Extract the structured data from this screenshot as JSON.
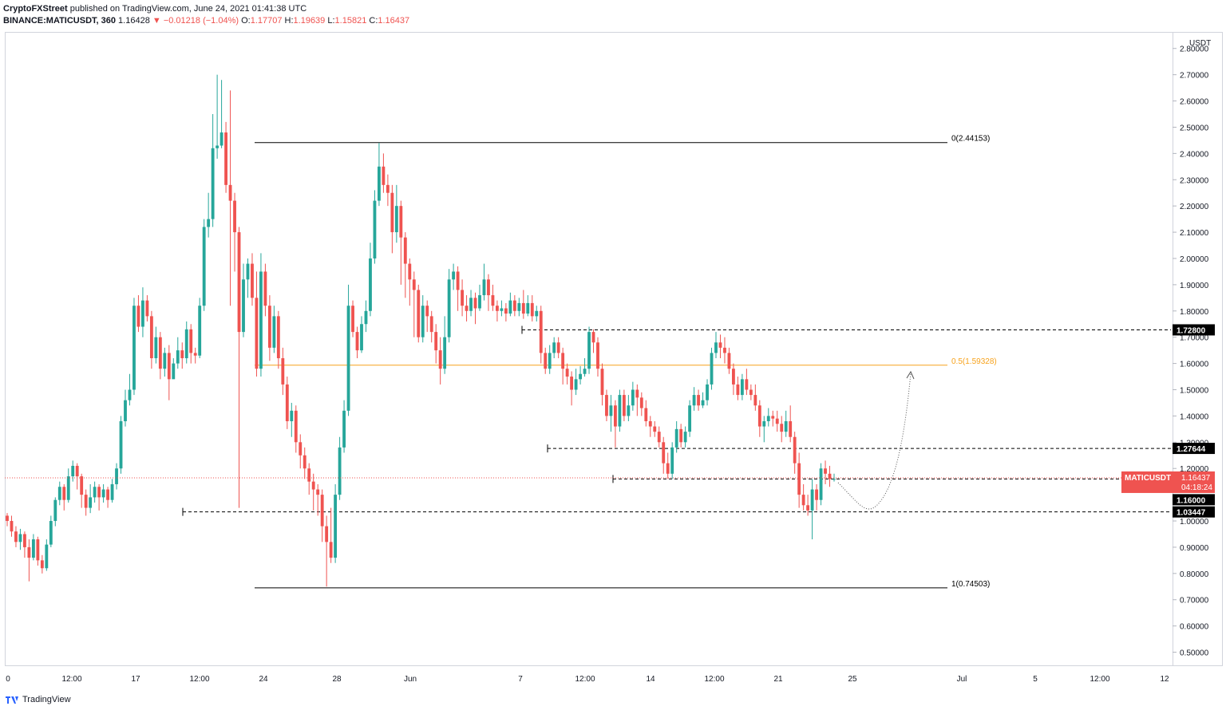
{
  "header": {
    "publisher": "CryptoFXStreet",
    "published_text": "published on TradingView.com, June 24, 2021 01:41:38 UTC",
    "symbol": "BINANCE:MATICUSDT, 360",
    "last": "1.16428",
    "change": "−0.01218 (−1.04%)",
    "o_label": "O:",
    "o": "1.17707",
    "h_label": "H:",
    "h": "1.19639",
    "l_label": "L:",
    "l": "1.15821",
    "c_label": "C:",
    "c": "1.16437"
  },
  "footer": {
    "brand": "TradingView"
  },
  "colors": {
    "up": "#26a69a",
    "down": "#ef5350",
    "fib_mid": "#f7a21b",
    "level": "#000000"
  },
  "chart_data": {
    "type": "candlestick",
    "currency_label": "USDT",
    "y_ticks": [
      "2.80000",
      "2.70000",
      "2.60000",
      "2.50000",
      "2.40000",
      "2.30000",
      "2.20000",
      "2.10000",
      "2.00000",
      "1.90000",
      "1.80000",
      "1.70000",
      "1.60000",
      "1.50000",
      "1.40000",
      "1.30000",
      "1.20000",
      "1.00000",
      "0.90000",
      "0.80000",
      "0.70000",
      "0.60000",
      "0.50000"
    ],
    "x_ticks": [
      "0",
      "12:00",
      "17",
      "12:00",
      "24",
      "28",
      "Jun",
      "7",
      "12:00",
      "14",
      "12:00",
      "21",
      "25",
      "Jul",
      "5",
      "12:00",
      "12"
    ],
    "ylim": [
      0.45,
      2.86
    ],
    "fib_levels": [
      {
        "label": "0(2.44153)",
        "value": 2.44153
      },
      {
        "label": "0.5(1.59328)",
        "value": 1.59328
      },
      {
        "label": "1(0.74503)",
        "value": 0.74503
      }
    ],
    "price_levels": [
      {
        "label": "1.72800",
        "value": 1.728
      },
      {
        "label": "1.27644",
        "value": 1.27644
      },
      {
        "label": "1.16000",
        "value": 1.16
      },
      {
        "label": "1.03447",
        "value": 1.03447
      }
    ],
    "current_price": {
      "symbol": "MATICUSDT",
      "value": "1.16437",
      "countdown": "04:18:24"
    },
    "candles": [
      [
        1.02,
        1.0,
        1.03,
        0.98
      ],
      [
        1.0,
        0.96,
        1.02,
        0.94
      ],
      [
        0.96,
        0.92,
        0.98,
        0.9
      ],
      [
        0.92,
        0.95,
        0.97,
        0.89
      ],
      [
        0.95,
        0.9,
        0.96,
        0.86
      ],
      [
        0.9,
        0.86,
        0.93,
        0.77
      ],
      [
        0.86,
        0.93,
        0.95,
        0.85
      ],
      [
        0.93,
        0.85,
        0.94,
        0.83
      ],
      [
        0.85,
        0.82,
        0.87,
        0.8
      ],
      [
        0.82,
        0.91,
        0.93,
        0.81
      ],
      [
        0.91,
        1.0,
        1.02,
        0.9
      ],
      [
        1.0,
        1.08,
        1.09,
        0.98
      ],
      [
        1.08,
        1.13,
        1.15,
        1.06
      ],
      [
        1.13,
        1.08,
        1.14,
        1.04
      ],
      [
        1.08,
        1.17,
        1.2,
        1.07
      ],
      [
        1.17,
        1.21,
        1.23,
        1.15
      ],
      [
        1.21,
        1.17,
        1.22,
        1.12
      ],
      [
        1.17,
        1.1,
        1.18,
        1.05
      ],
      [
        1.1,
        1.05,
        1.12,
        1.02
      ],
      [
        1.05,
        1.09,
        1.14,
        1.03
      ],
      [
        1.09,
        1.13,
        1.15,
        1.07
      ],
      [
        1.13,
        1.09,
        1.14,
        1.04
      ],
      [
        1.09,
        1.12,
        1.14,
        1.07
      ],
      [
        1.12,
        1.08,
        1.13,
        1.05
      ],
      [
        1.08,
        1.14,
        1.16,
        1.07
      ],
      [
        1.14,
        1.2,
        1.22,
        1.12
      ],
      [
        1.2,
        1.38,
        1.4,
        1.18
      ],
      [
        1.38,
        1.46,
        1.5,
        1.36
      ],
      [
        1.46,
        1.5,
        1.56,
        1.44
      ],
      [
        1.5,
        1.82,
        1.85,
        1.48
      ],
      [
        1.82,
        1.74,
        1.86,
        1.72
      ],
      [
        1.74,
        1.84,
        1.89,
        1.7
      ],
      [
        1.84,
        1.78,
        1.86,
        1.76
      ],
      [
        1.78,
        1.62,
        1.8,
        1.58
      ],
      [
        1.62,
        1.7,
        1.74,
        1.6
      ],
      [
        1.7,
        1.58,
        1.72,
        1.54
      ],
      [
        1.58,
        1.64,
        1.66,
        1.55
      ],
      [
        1.64,
        1.54,
        1.67,
        1.46
      ],
      [
        1.54,
        1.6,
        1.62,
        1.58
      ],
      [
        1.6,
        1.65,
        1.7,
        1.58
      ],
      [
        1.65,
        1.62,
        1.68,
        1.58
      ],
      [
        1.62,
        1.73,
        1.76,
        1.6
      ],
      [
        1.73,
        1.64,
        1.75,
        1.6
      ],
      [
        1.64,
        1.63,
        1.66,
        1.6
      ],
      [
        1.63,
        1.82,
        1.85,
        1.62
      ],
      [
        1.82,
        2.12,
        2.15,
        1.8
      ],
      [
        2.12,
        2.15,
        2.25,
        2.08
      ],
      [
        2.15,
        2.42,
        2.55,
        2.12
      ],
      [
        2.42,
        2.43,
        2.7,
        2.38
      ],
      [
        2.43,
        2.48,
        2.68,
        2.42
      ],
      [
        2.48,
        2.28,
        2.52,
        2.25
      ],
      [
        2.28,
        2.22,
        2.64,
        1.82
      ],
      [
        2.22,
        2.1,
        2.25,
        1.95
      ],
      [
        2.1,
        1.72,
        2.12,
        1.05
      ],
      [
        1.72,
        1.92,
        1.98,
        1.7
      ],
      [
        1.92,
        1.98,
        2.0,
        1.85
      ],
      [
        1.98,
        1.85,
        2.02,
        1.82
      ],
      [
        1.85,
        1.58,
        1.95,
        1.55
      ],
      [
        1.58,
        1.95,
        2.02,
        1.55
      ],
      [
        1.95,
        1.82,
        1.98,
        1.78
      ],
      [
        1.82,
        1.66,
        1.86,
        1.61
      ],
      [
        1.66,
        1.78,
        1.82,
        1.64
      ],
      [
        1.78,
        1.62,
        1.8,
        1.58
      ],
      [
        1.62,
        1.52,
        1.66,
        1.48
      ],
      [
        1.52,
        1.38,
        1.55,
        1.35
      ],
      [
        1.38,
        1.42,
        1.45,
        1.32
      ],
      [
        1.42,
        1.3,
        1.44,
        1.26
      ],
      [
        1.3,
        1.25,
        1.33,
        1.2
      ],
      [
        1.25,
        1.2,
        1.28,
        1.16
      ],
      [
        1.2,
        1.15,
        1.22,
        1.1
      ],
      [
        1.15,
        1.12,
        1.18,
        1.04
      ],
      [
        1.12,
        1.1,
        1.14,
        1.02
      ],
      [
        1.1,
        0.98,
        1.12,
        0.92
      ],
      [
        0.98,
        0.92,
        1.02,
        0.75
      ],
      [
        0.92,
        0.86,
        1.05,
        0.84
      ],
      [
        0.86,
        1.1,
        1.14,
        0.84
      ],
      [
        1.1,
        1.28,
        1.32,
        1.08
      ],
      [
        1.28,
        1.42,
        1.46,
        1.26
      ],
      [
        1.42,
        1.82,
        1.9,
        1.4
      ],
      [
        1.82,
        1.72,
        1.84,
        1.7
      ],
      [
        1.72,
        1.65,
        1.74,
        1.62
      ],
      [
        1.65,
        1.75,
        1.78,
        1.64
      ],
      [
        1.75,
        1.8,
        1.84,
        1.72
      ],
      [
        1.8,
        2.0,
        2.06,
        1.78
      ],
      [
        2.0,
        2.22,
        2.26,
        1.98
      ],
      [
        2.22,
        2.35,
        2.44,
        2.2
      ],
      [
        2.35,
        2.28,
        2.4,
        2.25
      ],
      [
        2.28,
        2.25,
        2.32,
        2.2
      ],
      [
        2.25,
        2.1,
        2.28,
        2.02
      ],
      [
        2.1,
        2.2,
        2.28,
        2.06
      ],
      [
        2.2,
        2.08,
        2.22,
        1.9
      ],
      [
        2.08,
        1.98,
        2.1,
        1.85
      ],
      [
        1.98,
        1.92,
        2.0,
        1.82
      ],
      [
        1.92,
        1.88,
        1.95,
        1.7
      ],
      [
        1.88,
        1.7,
        1.9,
        1.68
      ],
      [
        1.7,
        1.82,
        1.86,
        1.68
      ],
      [
        1.82,
        1.78,
        1.84,
        1.72
      ],
      [
        1.78,
        1.72,
        1.8,
        1.68
      ],
      [
        1.72,
        1.65,
        1.75,
        1.6
      ],
      [
        1.65,
        1.58,
        1.7,
        1.52
      ],
      [
        1.58,
        1.7,
        1.78,
        1.56
      ],
      [
        1.7,
        1.92,
        1.96,
        1.68
      ],
      [
        1.92,
        1.95,
        1.98,
        1.88
      ],
      [
        1.95,
        1.88,
        1.97,
        1.8
      ],
      [
        1.88,
        1.82,
        1.92,
        1.78
      ],
      [
        1.82,
        1.8,
        1.86,
        1.76
      ],
      [
        1.8,
        1.85,
        1.88,
        1.78
      ],
      [
        1.85,
        1.81,
        1.87,
        1.75
      ],
      [
        1.81,
        1.86,
        1.9,
        1.8
      ],
      [
        1.86,
        1.92,
        1.98,
        1.84
      ],
      [
        1.92,
        1.86,
        1.94,
        1.8
      ],
      [
        1.86,
        1.82,
        1.9,
        1.8
      ],
      [
        1.82,
        1.8,
        1.84,
        1.76
      ],
      [
        1.8,
        1.81,
        1.84,
        1.78
      ],
      [
        1.81,
        1.79,
        1.83,
        1.76
      ],
      [
        1.79,
        1.84,
        1.87,
        1.78
      ],
      [
        1.84,
        1.8,
        1.86,
        1.78
      ],
      [
        1.8,
        1.83,
        1.85,
        1.78
      ],
      [
        1.83,
        1.79,
        1.88,
        1.77
      ],
      [
        1.79,
        1.83,
        1.86,
        1.78
      ],
      [
        1.83,
        1.78,
        1.86,
        1.76
      ],
      [
        1.78,
        1.8,
        1.82,
        1.76
      ],
      [
        1.8,
        1.64,
        1.82,
        1.6
      ],
      [
        1.64,
        1.58,
        1.66,
        1.56
      ],
      [
        1.58,
        1.64,
        1.67,
        1.56
      ],
      [
        1.64,
        1.68,
        1.7,
        1.62
      ],
      [
        1.68,
        1.64,
        1.7,
        1.62
      ],
      [
        1.64,
        1.58,
        1.66,
        1.52
      ],
      [
        1.58,
        1.55,
        1.6,
        1.52
      ],
      [
        1.55,
        1.5,
        1.57,
        1.44
      ],
      [
        1.5,
        1.54,
        1.58,
        1.48
      ],
      [
        1.54,
        1.56,
        1.59,
        1.52
      ],
      [
        1.56,
        1.58,
        1.62,
        1.55
      ],
      [
        1.58,
        1.72,
        1.74,
        1.56
      ],
      [
        1.72,
        1.68,
        1.73,
        1.64
      ],
      [
        1.68,
        1.58,
        1.7,
        1.55
      ],
      [
        1.58,
        1.48,
        1.6,
        1.44
      ],
      [
        1.48,
        1.4,
        1.5,
        1.38
      ],
      [
        1.4,
        1.44,
        1.48,
        1.34
      ],
      [
        1.44,
        1.36,
        1.46,
        1.28
      ],
      [
        1.36,
        1.48,
        1.5,
        1.34
      ],
      [
        1.48,
        1.4,
        1.5,
        1.38
      ],
      [
        1.4,
        1.44,
        1.48,
        1.38
      ],
      [
        1.44,
        1.5,
        1.53,
        1.42
      ],
      [
        1.5,
        1.47,
        1.52,
        1.4
      ],
      [
        1.47,
        1.43,
        1.49,
        1.4
      ],
      [
        1.43,
        1.38,
        1.46,
        1.36
      ],
      [
        1.38,
        1.36,
        1.4,
        1.32
      ],
      [
        1.36,
        1.34,
        1.38,
        1.32
      ],
      [
        1.34,
        1.3,
        1.36,
        1.28
      ],
      [
        1.3,
        1.22,
        1.32,
        1.18
      ],
      [
        1.22,
        1.18,
        1.26,
        1.16
      ],
      [
        1.18,
        1.28,
        1.3,
        1.16
      ],
      [
        1.28,
        1.35,
        1.38,
        1.26
      ],
      [
        1.35,
        1.3,
        1.37,
        1.28
      ],
      [
        1.3,
        1.34,
        1.36,
        1.28
      ],
      [
        1.34,
        1.44,
        1.46,
        1.32
      ],
      [
        1.44,
        1.48,
        1.51,
        1.42
      ],
      [
        1.48,
        1.44,
        1.5,
        1.42
      ],
      [
        1.44,
        1.46,
        1.49,
        1.43
      ],
      [
        1.46,
        1.52,
        1.54,
        1.44
      ],
      [
        1.52,
        1.64,
        1.66,
        1.5
      ],
      [
        1.64,
        1.68,
        1.72,
        1.62
      ],
      [
        1.68,
        1.66,
        1.71,
        1.62
      ],
      [
        1.66,
        1.64,
        1.7,
        1.6
      ],
      [
        1.64,
        1.58,
        1.66,
        1.56
      ],
      [
        1.58,
        1.52,
        1.6,
        1.48
      ],
      [
        1.52,
        1.48,
        1.55,
        1.46
      ],
      [
        1.48,
        1.54,
        1.56,
        1.46
      ],
      [
        1.54,
        1.5,
        1.58,
        1.48
      ],
      [
        1.5,
        1.48,
        1.52,
        1.46
      ],
      [
        1.48,
        1.44,
        1.52,
        1.42
      ],
      [
        1.44,
        1.36,
        1.46,
        1.32
      ],
      [
        1.36,
        1.38,
        1.4,
        1.3
      ],
      [
        1.38,
        1.4,
        1.43,
        1.36
      ],
      [
        1.4,
        1.39,
        1.42,
        1.36
      ],
      [
        1.39,
        1.37,
        1.42,
        1.34
      ],
      [
        1.37,
        1.34,
        1.4,
        1.3
      ],
      [
        1.34,
        1.38,
        1.42,
        1.32
      ],
      [
        1.38,
        1.32,
        1.44,
        1.3
      ],
      [
        1.32,
        1.22,
        1.34,
        1.18
      ],
      [
        1.22,
        1.1,
        1.26,
        1.05
      ],
      [
        1.1,
        1.06,
        1.14,
        1.04
      ],
      [
        1.06,
        1.04,
        1.1,
        1.02
      ],
      [
        1.04,
        1.12,
        1.16,
        0.93
      ],
      [
        1.12,
        1.08,
        1.14,
        1.04
      ],
      [
        1.08,
        1.2,
        1.22,
        1.06
      ],
      [
        1.2,
        1.18,
        1.23,
        1.14
      ],
      [
        1.18,
        1.16,
        1.21,
        1.13
      ],
      [
        1.16,
        1.16,
        1.18,
        1.15
      ]
    ]
  }
}
